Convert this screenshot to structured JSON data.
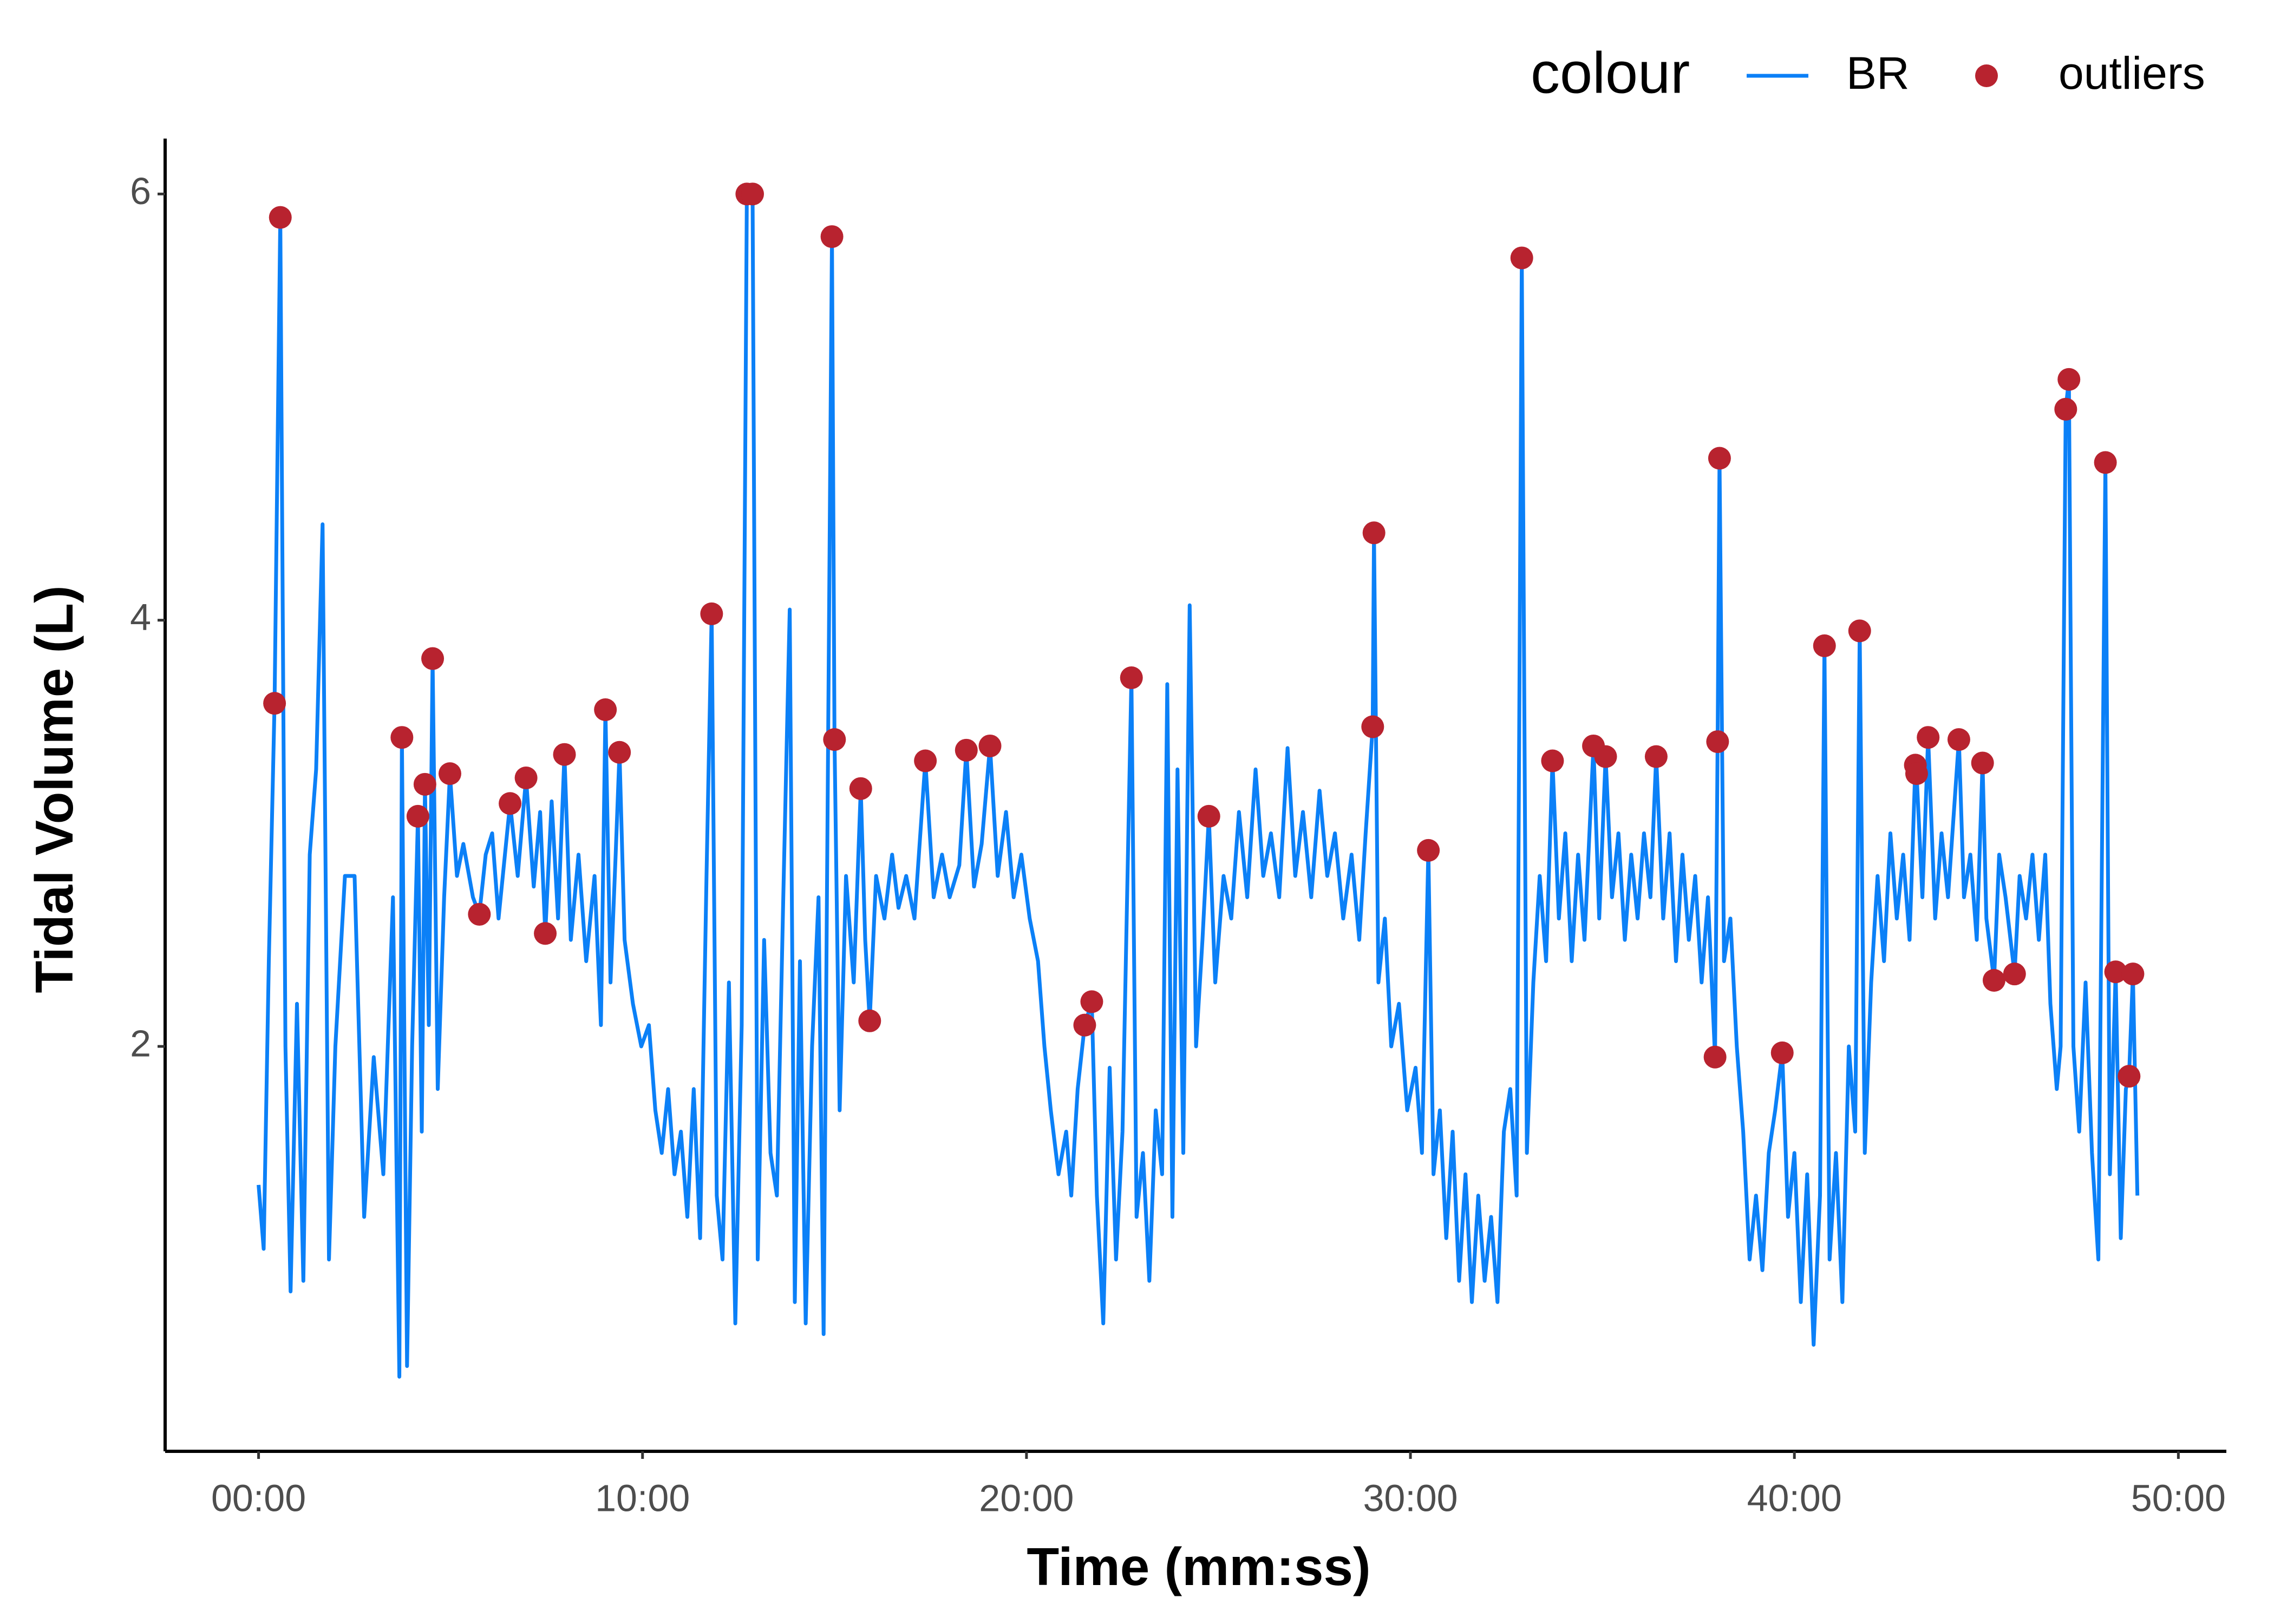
{
  "chart_data": {
    "type": "line",
    "x_label": "Time (mm:ss)",
    "y_label": "Tidal Volume (L)",
    "legend_title": "colour",
    "legend": "top-right",
    "grid": false,
    "xlim": [
      -146,
      3075
    ],
    "ylim": [
      0.1,
      6.26
    ],
    "xticks": [
      {
        "value": 0,
        "label": "00:00"
      },
      {
        "value": 600,
        "label": "10:00"
      },
      {
        "value": 1200,
        "label": "20:00"
      },
      {
        "value": 1800,
        "label": "30:00"
      },
      {
        "value": 2400,
        "label": "40:00"
      },
      {
        "value": 3000,
        "label": "50:00"
      }
    ],
    "yticks": [
      2,
      4,
      6
    ],
    "series": [
      {
        "name": "BR",
        "type": "line",
        "color": "#0B80F7",
        "x": [
          0,
          8,
          16,
          25,
          34,
          42,
          50,
          60,
          70,
          80,
          90,
          100,
          110,
          120,
          135,
          150,
          165,
          180,
          195,
          210,
          220,
          224,
          232,
          240,
          249,
          255,
          260,
          266,
          272,
          280,
          290,
          299,
          310,
          320,
          335,
          345,
          355,
          365,
          375,
          385,
          393,
          405,
          418,
          430,
          440,
          448,
          458,
          468,
          478,
          488,
          500,
          512,
          525,
          535,
          542,
          550,
          558,
          564,
          572,
          585,
          598,
          610,
          620,
          630,
          640,
          650,
          660,
          670,
          680,
          690,
          700,
          708,
          716,
          725,
          735,
          745,
          755,
          763,
          772,
          780,
          790,
          800,
          810,
          820,
          830,
          838,
          846,
          855,
          865,
          875,
          883,
          896,
          900,
          908,
          918,
          930,
          941,
          948,
          955,
          965,
          978,
          990,
          1000,
          1012,
          1025,
          1042,
          1055,
          1068,
          1080,
          1095,
          1106,
          1118,
          1130,
          1143,
          1155,
          1168,
          1180,
          1192,
          1205,
          1218,
          1228,
          1238,
          1250,
          1262,
          1270,
          1280,
          1291,
          1302,
          1310,
          1320,
          1330,
          1340,
          1350,
          1364,
          1372,
          1382,
          1392,
          1402,
          1412,
          1420,
          1428,
          1436,
          1445,
          1455,
          1465,
          1475,
          1485,
          1495,
          1508,
          1520,
          1532,
          1545,
          1558,
          1570,
          1582,
          1595,
          1608,
          1620,
          1632,
          1645,
          1658,
          1670,
          1682,
          1695,
          1708,
          1720,
          1730,
          1741,
          1743,
          1750,
          1760,
          1770,
          1782,
          1795,
          1808,
          1818,
          1828,
          1836,
          1846,
          1856,
          1866,
          1876,
          1886,
          1896,
          1906,
          1916,
          1926,
          1936,
          1946,
          1956,
          1966,
          1974,
          1982,
          1992,
          2002,
          2012,
          2022,
          2032,
          2042,
          2052,
          2062,
          2072,
          2086,
          2095,
          2105,
          2115,
          2125,
          2135,
          2145,
          2155,
          2165,
          2175,
          2184,
          2195,
          2205,
          2215,
          2225,
          2235,
          2245,
          2255,
          2265,
          2276,
          2280,
          2283,
          2290,
          2300,
          2310,
          2320,
          2330,
          2340,
          2350,
          2360,
          2370,
          2381,
          2390,
          2400,
          2410,
          2420,
          2430,
          2440,
          2447,
          2455,
          2465,
          2475,
          2485,
          2495,
          2502,
          2510,
          2520,
          2530,
          2540,
          2550,
          2560,
          2570,
          2580,
          2589,
          2591,
          2600,
          2609,
          2620,
          2630,
          2640,
          2657,
          2665,
          2675,
          2685,
          2694,
          2700,
          2712,
          2720,
          2730,
          2744,
          2752,
          2762,
          2772,
          2782,
          2792,
          2800,
          2810,
          2816,
          2824,
          2829,
          2836,
          2845,
          2855,
          2865,
          2875,
          2886,
          2893,
          2902,
          2910,
          2918,
          2923,
          2929,
          2936
        ],
        "values": [
          1.35,
          1.05,
          2.4,
          3.61,
          5.89,
          2.0,
          0.85,
          2.2,
          0.9,
          2.9,
          3.3,
          4.45,
          1.0,
          2.0,
          2.8,
          2.8,
          1.2,
          1.95,
          1.4,
          2.7,
          0.45,
          3.45,
          0.5,
          2.0,
          3.08,
          1.6,
          3.23,
          2.1,
          3.82,
          1.8,
          2.7,
          3.28,
          2.8,
          2.95,
          2.7,
          2.62,
          2.9,
          3.0,
          2.6,
          2.9,
          3.14,
          2.8,
          3.26,
          2.75,
          3.1,
          2.53,
          3.15,
          2.6,
          3.37,
          2.5,
          2.9,
          2.4,
          2.8,
          2.1,
          3.58,
          2.3,
          2.9,
          3.38,
          2.5,
          2.2,
          2.0,
          2.1,
          1.7,
          1.5,
          1.8,
          1.4,
          1.6,
          1.2,
          1.8,
          1.1,
          2.8,
          4.03,
          1.3,
          1.0,
          2.3,
          0.7,
          2.1,
          6.0,
          6.0,
          1.0,
          2.5,
          1.5,
          1.3,
          2.7,
          4.05,
          0.8,
          2.4,
          0.7,
          2.0,
          2.7,
          0.65,
          5.8,
          3.44,
          1.7,
          2.8,
          2.3,
          3.21,
          2.5,
          2.12,
          2.8,
          2.6,
          2.9,
          2.65,
          2.8,
          2.6,
          3.34,
          2.7,
          2.9,
          2.7,
          2.85,
          3.39,
          2.75,
          2.95,
          3.41,
          2.8,
          3.1,
          2.7,
          2.9,
          2.6,
          2.4,
          2.0,
          1.7,
          1.4,
          1.6,
          1.3,
          1.8,
          2.1,
          2.21,
          1.3,
          0.7,
          1.9,
          1.0,
          1.6,
          3.73,
          1.2,
          1.5,
          0.9,
          1.7,
          1.4,
          3.7,
          1.2,
          3.3,
          1.5,
          4.07,
          2.0,
          2.5,
          3.08,
          2.3,
          2.8,
          2.6,
          3.1,
          2.7,
          3.3,
          2.8,
          3.0,
          2.7,
          3.4,
          2.8,
          3.1,
          2.7,
          3.2,
          2.8,
          3.0,
          2.6,
          2.9,
          2.5,
          3.0,
          3.5,
          4.41,
          2.3,
          2.6,
          2.0,
          2.2,
          1.7,
          1.9,
          1.5,
          2.92,
          1.4,
          1.7,
          1.1,
          1.6,
          0.9,
          1.4,
          0.8,
          1.3,
          0.9,
          1.2,
          0.8,
          1.6,
          1.8,
          1.3,
          5.7,
          1.5,
          2.3,
          2.8,
          2.4,
          3.34,
          2.6,
          3.0,
          2.4,
          2.9,
          2.5,
          3.41,
          2.6,
          3.36,
          2.7,
          3.0,
          2.5,
          2.9,
          2.6,
          3.0,
          2.7,
          3.36,
          2.6,
          3.0,
          2.4,
          2.9,
          2.5,
          2.8,
          2.3,
          2.7,
          1.95,
          3.43,
          4.76,
          2.4,
          2.6,
          2.0,
          1.6,
          1.0,
          1.3,
          0.95,
          1.5,
          1.7,
          1.97,
          1.2,
          1.5,
          0.8,
          1.4,
          0.6,
          1.3,
          3.88,
          1.0,
          1.5,
          0.8,
          2.0,
          1.6,
          3.95,
          1.5,
          2.3,
          2.8,
          2.4,
          3.0,
          2.6,
          2.9,
          2.5,
          3.32,
          3.28,
          2.7,
          3.45,
          2.6,
          3.0,
          2.7,
          3.44,
          2.7,
          2.9,
          2.5,
          3.33,
          2.6,
          2.31,
          2.9,
          2.7,
          2.34,
          2.8,
          2.6,
          2.9,
          2.5,
          2.9,
          2.2,
          1.8,
          2.0,
          4.99,
          5.13,
          2.0,
          1.6,
          2.3,
          1.5,
          1.0,
          4.74,
          1.4,
          2.35,
          1.1,
          1.8,
          1.86,
          2.34,
          1.3
        ]
      },
      {
        "name": "outliers",
        "type": "scatter",
        "color": "#B8232F",
        "x": [
          34,
          25,
          224,
          249,
          260,
          272,
          299,
          345,
          393,
          418,
          448,
          478,
          542,
          564,
          708,
          763,
          772,
          896,
          900,
          941,
          955,
          1042,
          1106,
          1143,
          1291,
          1302,
          1364,
          1485,
          1741,
          1743,
          1828,
          1974,
          2022,
          2086,
          2105,
          2184,
          2276,
          2280,
          2283,
          2381,
          2447,
          2502,
          2589,
          2591,
          2609,
          2657,
          2694,
          2712,
          2744,
          2824,
          2829,
          2886,
          2902,
          2929,
          2923
        ],
        "values": [
          5.89,
          3.61,
          3.45,
          3.08,
          3.23,
          3.82,
          3.28,
          2.62,
          3.14,
          3.26,
          2.53,
          3.37,
          3.58,
          3.38,
          4.03,
          6.0,
          6.0,
          5.8,
          3.44,
          3.21,
          2.12,
          3.34,
          3.39,
          3.41,
          2.1,
          2.21,
          3.73,
          3.08,
          3.5,
          4.41,
          2.92,
          5.7,
          3.34,
          3.41,
          3.36,
          3.36,
          1.95,
          3.43,
          4.76,
          1.97,
          3.88,
          3.95,
          3.32,
          3.28,
          3.45,
          3.44,
          3.33,
          2.31,
          2.34,
          4.99,
          5.13,
          4.74,
          2.35,
          2.34,
          1.86
        ]
      }
    ]
  }
}
